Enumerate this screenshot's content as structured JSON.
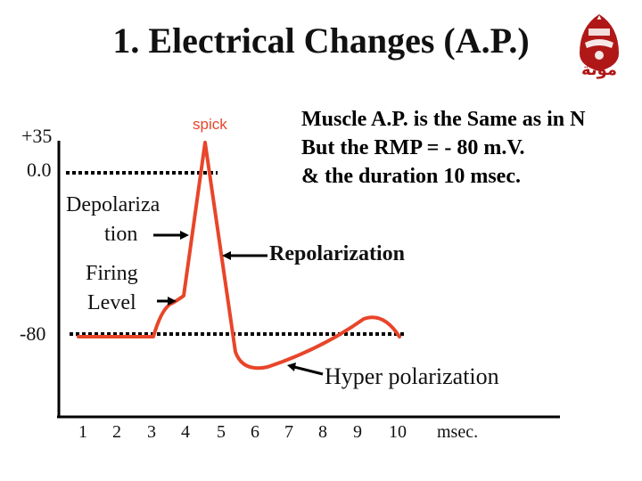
{
  "slide": {
    "title": "1. Electrical Changes (A.P.)",
    "logo": {
      "icon": "university-seal-icon",
      "caption": "موتة",
      "color": "#b01818"
    },
    "note_lines": [
      "Muscle A.P. is the Same as in N",
      "But the RMP = - 80 m.V.",
      "& the duration 10 msec."
    ],
    "y_labels": {
      "top": "+35",
      "zero": "0.0",
      "rest": "-80"
    },
    "labels": {
      "spick": "spick",
      "depolarization_line1": "Depolariza",
      "depolarization_line2": "tion",
      "firing_line1": "Firing",
      "firing_line2": "Level",
      "repolarization": "Repolarization",
      "hyper": "Hyper polarization"
    },
    "x_ticks": [
      "1",
      "2",
      "3",
      "4",
      "5",
      "6",
      "7",
      "8",
      "9",
      "10"
    ],
    "x_unit": "msec.",
    "colors": {
      "curve": "#e8452a",
      "spick_text": "#e8452a",
      "text": "#111111"
    }
  }
}
